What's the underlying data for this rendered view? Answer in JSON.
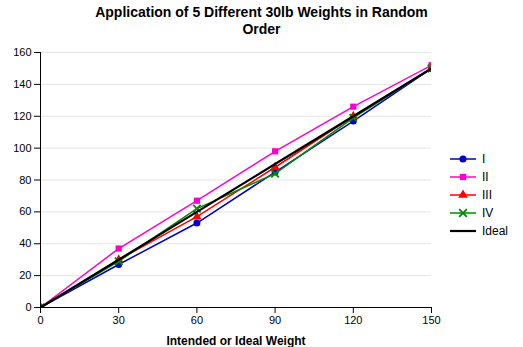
{
  "chart_data": {
    "type": "line",
    "title": "Application of 5 Different 30lb Weights in Random\nOrder",
    "xlabel": "Intended or Ideal Weight",
    "x": [
      0,
      30,
      60,
      90,
      120,
      150
    ],
    "series": [
      {
        "name": "I",
        "color": "#0000CC",
        "marker": "circle",
        "values": [
          0,
          27,
          53,
          85,
          117,
          150
        ]
      },
      {
        "name": "II",
        "color": "#FF00CC",
        "marker": "square",
        "values": [
          0,
          37,
          67,
          98,
          126,
          152
        ]
      },
      {
        "name": "III",
        "color": "#FF0000",
        "marker": "triangle",
        "values": [
          0,
          30,
          57,
          88,
          120,
          150
        ]
      },
      {
        "name": "IV",
        "color": "#008800",
        "marker": "x",
        "values": [
          0,
          29,
          62,
          84,
          119,
          150
        ]
      },
      {
        "name": "Ideal",
        "color": "#000000",
        "values": [
          0,
          30,
          60,
          90,
          120,
          150
        ]
      }
    ],
    "xlim": [
      0,
      150
    ],
    "ylim": [
      0,
      160
    ],
    "xticks": [
      0,
      30,
      60,
      90,
      120,
      150
    ],
    "yticks": [
      0,
      20,
      40,
      60,
      80,
      100,
      120,
      140,
      160
    ],
    "grid": "y",
    "legend": "right"
  }
}
